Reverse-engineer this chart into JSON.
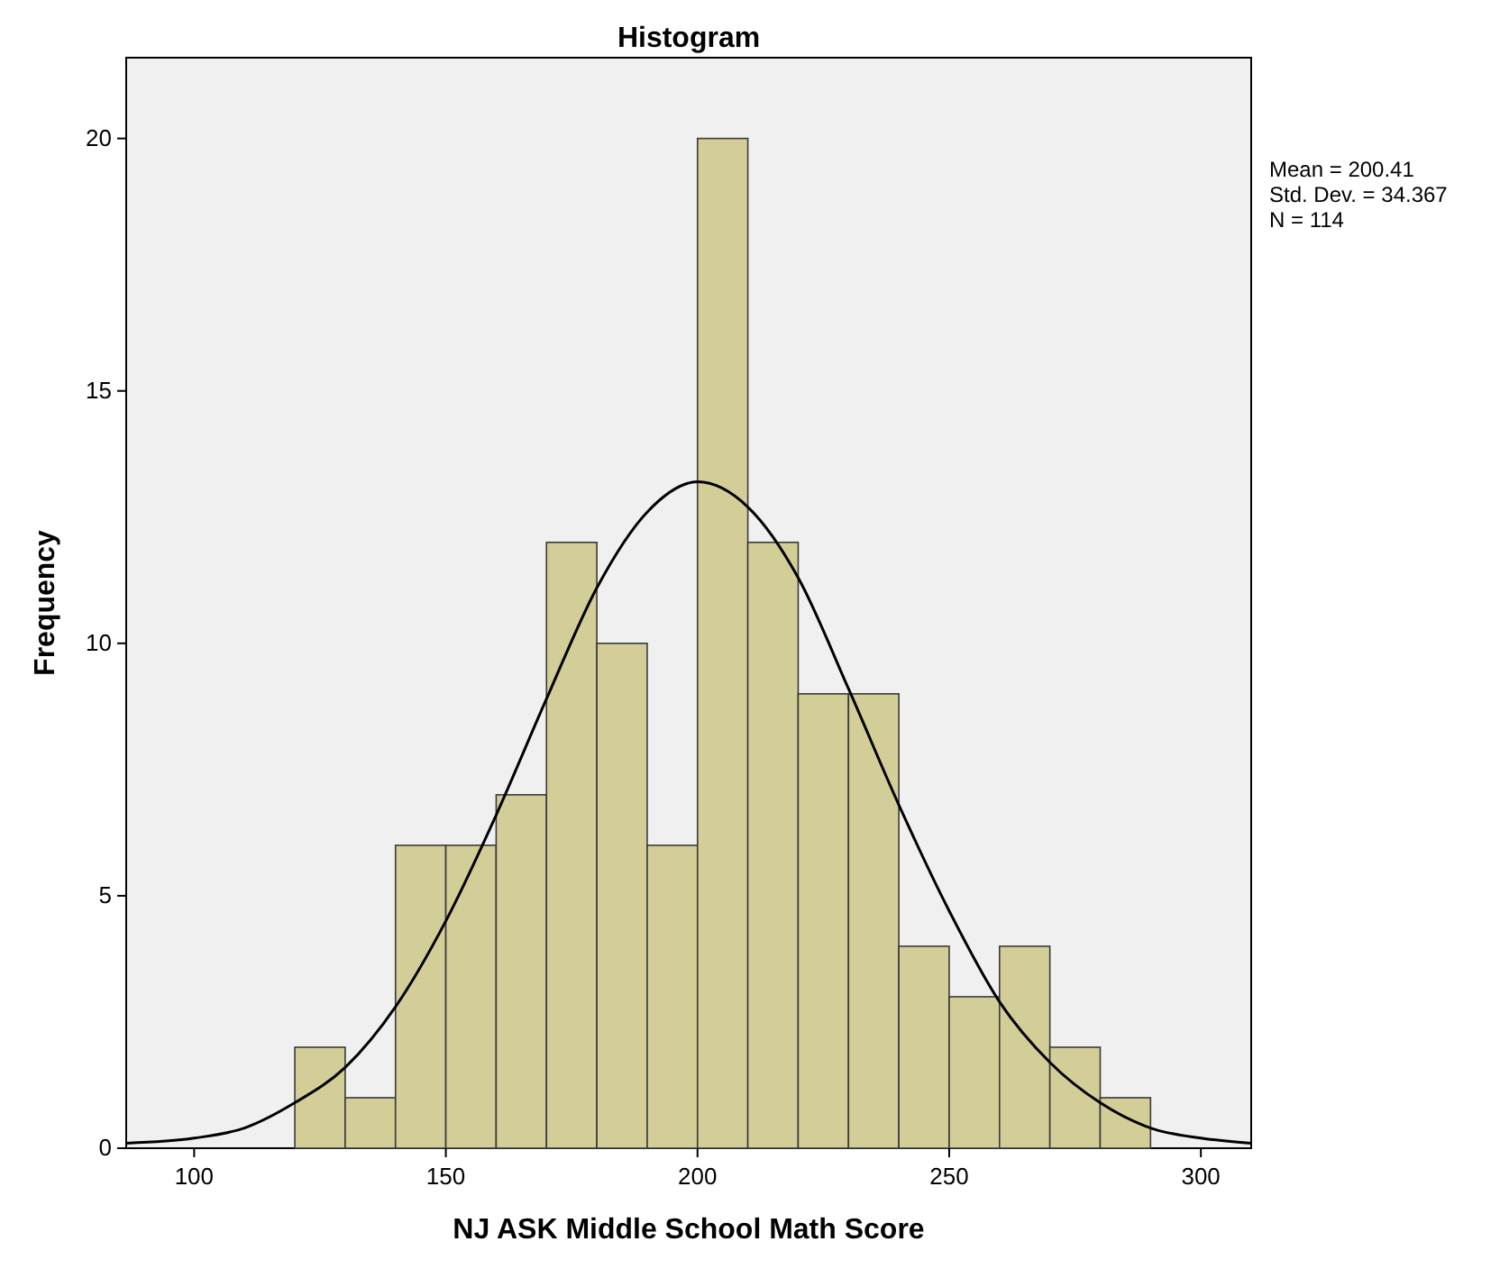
{
  "chart_data": {
    "type": "histogram",
    "title": "Histogram",
    "xlabel": "NJ ASK Middle School Math Score",
    "ylabel": "Frequency",
    "bins": [
      120,
      130,
      140,
      150,
      160,
      170,
      180,
      190,
      200,
      210,
      220,
      230,
      240,
      250,
      260,
      270,
      280,
      290
    ],
    "values": [
      2,
      1,
      6,
      6,
      7,
      12,
      10,
      6,
      20,
      12,
      9,
      9,
      4,
      3,
      4,
      2,
      1
    ],
    "color": "#d3ce97",
    "series": [
      {
        "type": "line",
        "color": "#000000",
        "x": [
          86.5,
          100,
          110,
          120,
          130,
          140,
          150,
          160,
          170,
          180,
          190,
          200,
          210,
          220,
          230,
          240,
          250,
          260,
          270,
          280,
          290,
          300,
          310
        ],
        "values": [
          0.1,
          0.2,
          0.4,
          0.9,
          1.6,
          2.8,
          4.5,
          6.6,
          8.9,
          11.1,
          12.6,
          13.2,
          12.7,
          11.3,
          9.1,
          6.8,
          4.7,
          2.9,
          1.7,
          0.9,
          0.4,
          0.2,
          0.1
        ]
      }
    ],
    "xlim": [
      86.5,
      310
    ],
    "xticks": [
      100,
      150,
      200,
      250,
      300
    ],
    "ylim": [
      0,
      21.6
    ],
    "yticks": [
      0,
      5,
      10,
      15,
      20
    ],
    "annotations": [
      "Mean = 200.41",
      "Std. Dev. = 34.367",
      "N = 114"
    ],
    "grid": false,
    "marker": "none",
    "line_style": "solid"
  }
}
